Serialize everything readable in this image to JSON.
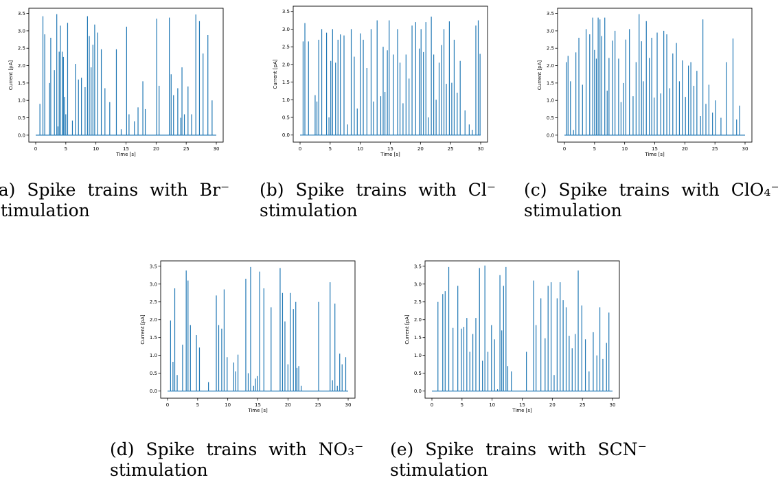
{
  "axis": {
    "xlabel": "Time [s]",
    "ylabel": "Current [pA]",
    "xticks": [
      "0",
      "5",
      "10",
      "15",
      "20",
      "25",
      "30"
    ],
    "yticks": [
      "0.0",
      "0.5",
      "1.0",
      "1.5",
      "2.0",
      "2.5",
      "3.0",
      "3.5"
    ],
    "line_color": "#1f77b4"
  },
  "captions": [
    {
      "line1": "(a) Spike trains with Br⁻",
      "line2": "stimulation"
    },
    {
      "line1": "(b) Spike trains with Cl⁻",
      "line2": "stimulation"
    },
    {
      "line1": "(c) Spike trains with ClO₄⁻",
      "line2": "stimulation"
    },
    {
      "line1": "(d) Spike trains with NO₃⁻",
      "line2": "stimulation"
    },
    {
      "line1": "(e) Spike trains with SCN⁻",
      "line2": "stimulation"
    }
  ],
  "chart_data": [
    {
      "type": "line",
      "xlabel": "Time [s]",
      "ylabel": "Current [pA]",
      "xlim": [
        0,
        30
      ],
      "ylim": [
        0,
        3.5
      ],
      "spikes": [
        [
          0.7,
          0.9
        ],
        [
          1.2,
          3.42
        ],
        [
          1.5,
          2.9
        ],
        [
          2.3,
          1.5
        ],
        [
          2.5,
          2.8
        ],
        [
          3.1,
          1.87
        ],
        [
          3.5,
          3.48
        ],
        [
          3.7,
          0.25
        ],
        [
          3.9,
          2.4
        ],
        [
          4.1,
          3.15
        ],
        [
          4.4,
          2.4
        ],
        [
          4.6,
          2.25
        ],
        [
          4.8,
          1.1
        ],
        [
          5.0,
          0.6
        ],
        [
          5.3,
          3.23
        ],
        [
          6.1,
          0.42
        ],
        [
          6.6,
          2.05
        ],
        [
          7.1,
          1.6
        ],
        [
          7.6,
          1.65
        ],
        [
          8.2,
          1.38
        ],
        [
          8.6,
          3.42
        ],
        [
          8.9,
          2.85
        ],
        [
          9.2,
          1.95
        ],
        [
          9.5,
          2.6
        ],
        [
          9.8,
          3.18
        ],
        [
          10.3,
          2.95
        ],
        [
          10.9,
          2.47
        ],
        [
          11.5,
          1.35
        ],
        [
          12.3,
          0.95
        ],
        [
          13.4,
          2.47
        ],
        [
          14.2,
          0.17
        ],
        [
          15.1,
          3.12
        ],
        [
          15.5,
          0.6
        ],
        [
          16.4,
          0.4
        ],
        [
          17.0,
          0.8
        ],
        [
          17.8,
          1.55
        ],
        [
          18.2,
          0.75
        ],
        [
          20.1,
          3.35
        ],
        [
          20.5,
          1.42
        ],
        [
          22.2,
          3.38
        ],
        [
          22.5,
          1.75
        ],
        [
          22.9,
          1.15
        ],
        [
          23.6,
          1.35
        ],
        [
          24.1,
          0.5
        ],
        [
          24.3,
          1.95
        ],
        [
          24.7,
          0.6
        ],
        [
          25.3,
          1.4
        ],
        [
          25.9,
          0.6
        ],
        [
          26.6,
          3.47
        ],
        [
          27.2,
          3.28
        ],
        [
          27.8,
          2.35
        ],
        [
          28.6,
          2.88
        ],
        [
          29.3,
          1.0
        ]
      ]
    },
    {
      "type": "line",
      "xlabel": "Time [s]",
      "ylabel": "Current [pA]",
      "xlim": [
        0,
        30
      ],
      "ylim": [
        0,
        3.5
      ],
      "spikes": [
        [
          0.5,
          2.65
        ],
        [
          0.8,
          3.17
        ],
        [
          1.4,
          2.65
        ],
        [
          2.5,
          1.13
        ],
        [
          2.8,
          0.95
        ],
        [
          3.1,
          2.7
        ],
        [
          3.6,
          3.0
        ],
        [
          4.4,
          2.9
        ],
        [
          4.8,
          0.5
        ],
        [
          5.1,
          2.1
        ],
        [
          5.4,
          3.0
        ],
        [
          5.9,
          2.05
        ],
        [
          6.3,
          2.7
        ],
        [
          6.7,
          2.85
        ],
        [
          7.3,
          2.82
        ],
        [
          7.9,
          0.3
        ],
        [
          8.5,
          3.0
        ],
        [
          9.0,
          2.22
        ],
        [
          9.5,
          0.75
        ],
        [
          10.0,
          2.88
        ],
        [
          10.5,
          2.7
        ],
        [
          11.1,
          1.9
        ],
        [
          11.8,
          3.0
        ],
        [
          12.2,
          0.95
        ],
        [
          12.8,
          3.25
        ],
        [
          13.4,
          1.1
        ],
        [
          13.8,
          2.5
        ],
        [
          14.1,
          1.22
        ],
        [
          14.5,
          2.4
        ],
        [
          14.8,
          3.25
        ],
        [
          15.5,
          2.28
        ],
        [
          16.2,
          3.0
        ],
        [
          16.6,
          2.05
        ],
        [
          17.1,
          0.9
        ],
        [
          17.6,
          2.28
        ],
        [
          18.1,
          1.6
        ],
        [
          18.6,
          3.1
        ],
        [
          19.2,
          3.2
        ],
        [
          19.8,
          2.45
        ],
        [
          20.1,
          3.0
        ],
        [
          20.5,
          2.35
        ],
        [
          20.9,
          3.2
        ],
        [
          21.3,
          0.5
        ],
        [
          21.8,
          3.35
        ],
        [
          22.2,
          2.28
        ],
        [
          22.6,
          1.0
        ],
        [
          23.1,
          2.05
        ],
        [
          23.5,
          2.55
        ],
        [
          23.9,
          3.0
        ],
        [
          24.3,
          1.45
        ],
        [
          24.8,
          3.22
        ],
        [
          25.2,
          1.48
        ],
        [
          25.6,
          2.7
        ],
        [
          26.1,
          1.2
        ],
        [
          26.6,
          2.1
        ],
        [
          27.4,
          0.7
        ],
        [
          28.1,
          0.3
        ],
        [
          28.6,
          0.15
        ],
        [
          29.2,
          3.1
        ],
        [
          29.6,
          3.25
        ],
        [
          29.9,
          2.3
        ]
      ]
    },
    {
      "type": "line",
      "xlabel": "Time [s]",
      "ylabel": "Current [pA]",
      "xlim": [
        0,
        30
      ],
      "ylim": [
        0,
        3.5
      ],
      "spikes": [
        [
          0.3,
          2.1
        ],
        [
          0.6,
          2.28
        ],
        [
          1.0,
          1.55
        ],
        [
          1.5,
          0.15
        ],
        [
          1.9,
          2.38
        ],
        [
          2.4,
          2.8
        ],
        [
          3.0,
          1.45
        ],
        [
          3.6,
          3.05
        ],
        [
          4.2,
          2.9
        ],
        [
          4.7,
          3.38
        ],
        [
          5.0,
          2.45
        ],
        [
          5.3,
          2.2
        ],
        [
          5.6,
          3.38
        ],
        [
          5.9,
          3.33
        ],
        [
          6.2,
          2.85
        ],
        [
          6.7,
          3.38
        ],
        [
          7.1,
          1.28
        ],
        [
          7.4,
          2.22
        ],
        [
          8.0,
          2.72
        ],
        [
          8.4,
          3.0
        ],
        [
          9.0,
          2.2
        ],
        [
          9.4,
          0.95
        ],
        [
          9.8,
          1.5
        ],
        [
          10.2,
          2.75
        ],
        [
          10.8,
          3.05
        ],
        [
          11.4,
          1.12
        ],
        [
          11.9,
          2.1
        ],
        [
          12.4,
          3.48
        ],
        [
          12.8,
          2.7
        ],
        [
          13.1,
          1.55
        ],
        [
          13.6,
          3.28
        ],
        [
          14.1,
          2.22
        ],
        [
          14.5,
          2.8
        ],
        [
          14.9,
          1.08
        ],
        [
          15.4,
          2.95
        ],
        [
          16.0,
          1.2
        ],
        [
          16.5,
          3.0
        ],
        [
          17.0,
          2.9
        ],
        [
          17.5,
          1.35
        ],
        [
          18.0,
          2.35
        ],
        [
          18.6,
          2.65
        ],
        [
          19.1,
          1.55
        ],
        [
          19.6,
          2.15
        ],
        [
          20.1,
          1.1
        ],
        [
          20.6,
          2.0
        ],
        [
          21.0,
          2.1
        ],
        [
          21.5,
          1.42
        ],
        [
          22.0,
          1.85
        ],
        [
          22.6,
          0.55
        ],
        [
          23.0,
          3.33
        ],
        [
          23.5,
          0.9
        ],
        [
          24.0,
          1.45
        ],
        [
          24.6,
          0.65
        ],
        [
          25.1,
          1.0
        ],
        [
          26.0,
          0.5
        ],
        [
          26.9,
          2.1
        ],
        [
          28.0,
          2.78
        ],
        [
          28.6,
          0.45
        ],
        [
          29.1,
          0.85
        ]
      ]
    },
    {
      "type": "line",
      "xlabel": "Time [s]",
      "ylabel": "Current [pA]",
      "xlim": [
        0,
        30
      ],
      "ylim": [
        0,
        3.5
      ],
      "spikes": [
        [
          0.5,
          1.98
        ],
        [
          0.9,
          0.82
        ],
        [
          1.2,
          2.88
        ],
        [
          1.6,
          0.45
        ],
        [
          2.5,
          1.3
        ],
        [
          3.1,
          3.38
        ],
        [
          3.4,
          3.1
        ],
        [
          3.8,
          1.85
        ],
        [
          4.8,
          1.57
        ],
        [
          5.3,
          1.22
        ],
        [
          6.8,
          0.25
        ],
        [
          8.1,
          2.68
        ],
        [
          8.5,
          1.85
        ],
        [
          9.0,
          1.75
        ],
        [
          9.4,
          2.85
        ],
        [
          9.9,
          0.95
        ],
        [
          11.0,
          0.8
        ],
        [
          11.3,
          0.55
        ],
        [
          11.7,
          1.02
        ],
        [
          13.0,
          3.15
        ],
        [
          13.4,
          0.5
        ],
        [
          13.8,
          3.48
        ],
        [
          14.3,
          0.15
        ],
        [
          14.6,
          0.35
        ],
        [
          14.9,
          0.42
        ],
        [
          15.3,
          3.35
        ],
        [
          16.0,
          2.88
        ],
        [
          17.2,
          2.35
        ],
        [
          18.7,
          3.45
        ],
        [
          19.1,
          2.75
        ],
        [
          19.5,
          1.95
        ],
        [
          20.0,
          0.75
        ],
        [
          20.4,
          2.75
        ],
        [
          20.9,
          2.3
        ],
        [
          21.3,
          2.5
        ],
        [
          21.5,
          0.65
        ],
        [
          21.8,
          0.7
        ],
        [
          22.2,
          0.15
        ],
        [
          25.1,
          2.5
        ],
        [
          27.0,
          3.05
        ],
        [
          27.4,
          0.3
        ],
        [
          27.8,
          2.45
        ],
        [
          28.2,
          0.15
        ],
        [
          28.6,
          1.05
        ],
        [
          29.0,
          0.75
        ],
        [
          29.6,
          0.95
        ]
      ]
    },
    {
      "type": "line",
      "xlabel": "Time [s]",
      "ylabel": "Current [pA]",
      "xlim": [
        0,
        30
      ],
      "ylim": [
        0,
        3.5
      ],
      "spikes": [
        [
          1.0,
          2.5
        ],
        [
          1.8,
          2.72
        ],
        [
          2.2,
          2.8
        ],
        [
          2.8,
          3.48
        ],
        [
          3.5,
          1.77
        ],
        [
          4.3,
          2.95
        ],
        [
          4.9,
          1.75
        ],
        [
          5.3,
          1.8
        ],
        [
          5.8,
          2.05
        ],
        [
          6.3,
          1.1
        ],
        [
          6.8,
          1.6
        ],
        [
          7.3,
          2.05
        ],
        [
          7.9,
          3.45
        ],
        [
          8.4,
          0.85
        ],
        [
          8.8,
          3.52
        ],
        [
          9.3,
          1.1
        ],
        [
          9.9,
          1.85
        ],
        [
          10.4,
          1.45
        ],
        [
          10.9,
          0.05
        ],
        [
          11.3,
          3.25
        ],
        [
          11.6,
          1.7
        ],
        [
          11.9,
          2.95
        ],
        [
          12.3,
          3.48
        ],
        [
          12.6,
          0.7
        ],
        [
          13.2,
          0.55
        ],
        [
          15.7,
          1.1
        ],
        [
          16.9,
          3.1
        ],
        [
          17.3,
          1.85
        ],
        [
          18.1,
          2.6
        ],
        [
          18.8,
          1.48
        ],
        [
          19.3,
          2.95
        ],
        [
          19.8,
          3.05
        ],
        [
          20.3,
          0.45
        ],
        [
          20.8,
          2.6
        ],
        [
          21.3,
          3.05
        ],
        [
          21.8,
          2.55
        ],
        [
          22.3,
          2.35
        ],
        [
          22.8,
          1.55
        ],
        [
          23.3,
          1.2
        ],
        [
          23.8,
          1.6
        ],
        [
          24.3,
          3.38
        ],
        [
          24.9,
          2.4
        ],
        [
          25.5,
          1.45
        ],
        [
          26.1,
          0.55
        ],
        [
          26.8,
          1.65
        ],
        [
          27.4,
          1.0
        ],
        [
          27.9,
          2.35
        ],
        [
          28.4,
          0.9
        ],
        [
          29.0,
          1.35
        ],
        [
          29.4,
          2.2
        ]
      ]
    }
  ]
}
